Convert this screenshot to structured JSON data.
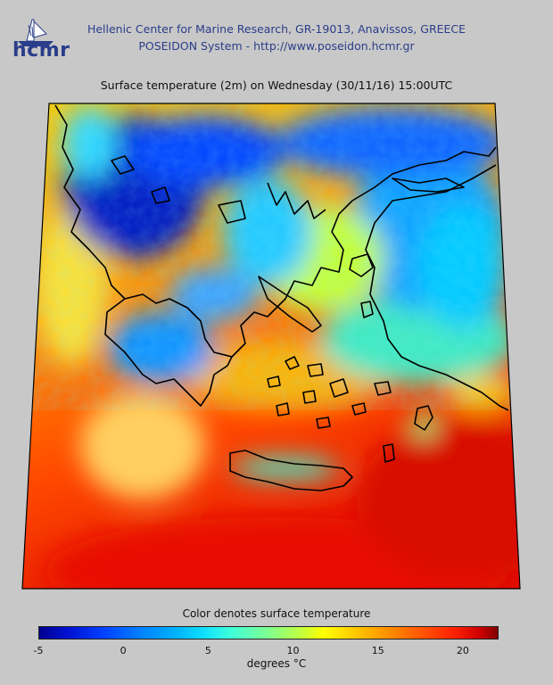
{
  "header": {
    "logo_text": "hcmr",
    "line1": "Hellenic Center for Marine Research, GR-19013, Anavissos, GREECE",
    "line2": "POSEIDON System - http://www.poseidon.hcmr.gr"
  },
  "map": {
    "title": "Surface temperature (2m) on Wednesday (30/11/16) 15:00UTC",
    "field": "surface temperature (2m)"
  },
  "colorbar": {
    "title": "Color denotes surface temperature",
    "unit_label": "degrees °C",
    "range": [
      -5,
      22
    ],
    "ticks": [
      {
        "label": "-5",
        "value": -5
      },
      {
        "label": "0",
        "value": 0
      },
      {
        "label": "5",
        "value": 5
      },
      {
        "label": "10",
        "value": 10
      },
      {
        "label": "15",
        "value": 15
      },
      {
        "label": "20",
        "value": 20
      }
    ]
  },
  "colors": {
    "header_text": "#2a3d8a",
    "cold": "#0020d0",
    "mild": "#ffff00",
    "warm": "#ff3000",
    "coastline": "#000000"
  }
}
